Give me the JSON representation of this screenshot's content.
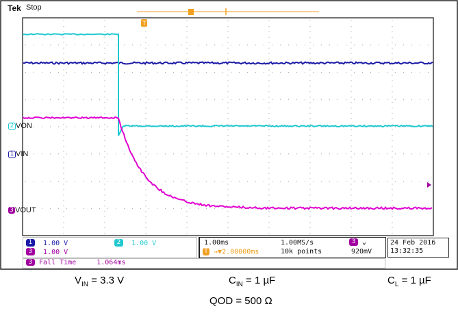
{
  "header": {
    "brand": "Tek",
    "state": "Stop"
  },
  "channels": {
    "ch1": {
      "number": "1",
      "label": "VIN",
      "color": "#1a1aa6",
      "scale": "1.00 V"
    },
    "ch2": {
      "number": "2",
      "label": "VON",
      "color": "#20c8d0",
      "scale": "1.00 V"
    },
    "ch3": {
      "number": "3",
      "label": "VOUT",
      "color": "#e000d0",
      "scale": "1.00 V"
    }
  },
  "trigger": {
    "marker": "T",
    "timebase": "1.00ms",
    "position": "2.00000ms",
    "sample_rate": "1.00MS/s",
    "record_length": "10k points",
    "level": "920mV",
    "source": "3",
    "slope_icon": "falling-edge"
  },
  "datetime": {
    "date": "24 Feb  2016",
    "time": "13:32:35"
  },
  "measurement": {
    "channel": "3",
    "name": "Fall Time",
    "value": "1.064ms"
  },
  "captions": {
    "vin_main": "V",
    "vin_sub": "IN",
    "vin_rest": " = 3.3 V",
    "cin_main": "C",
    "cin_sub": "IN",
    "cin_rest": " = 1 µF",
    "cl_main": "C",
    "cl_sub": "L",
    "cl_rest": " = 1 µF",
    "qod": "QOD = 500 Ω"
  },
  "colors": {
    "grid_bg": "#ffffff",
    "grid_dots": "#9a9a9a",
    "trigger_orange": "#f0a020"
  }
}
